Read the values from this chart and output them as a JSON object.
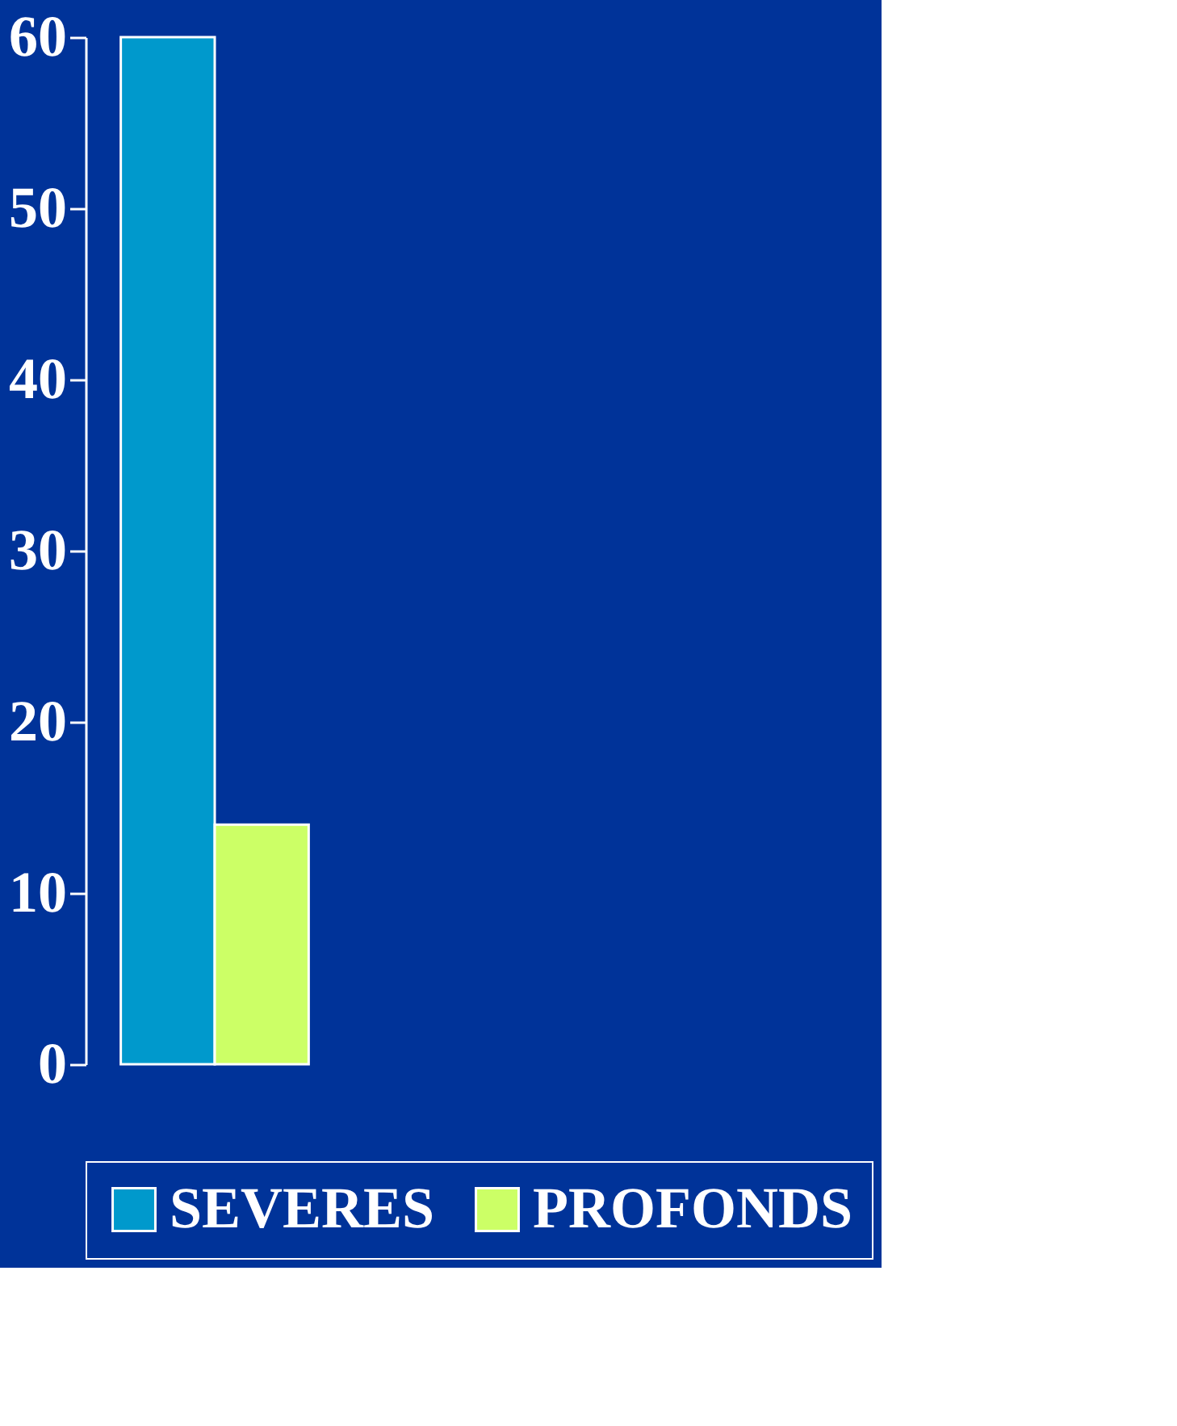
{
  "chart_data": {
    "type": "bar",
    "categories": [
      null
    ],
    "series": [
      {
        "name": "SEVERES",
        "color": "#0099cc",
        "values": [
          60
        ]
      },
      {
        "name": "PROFONDS",
        "color": "#ccff66",
        "values": [
          14
        ]
      }
    ],
    "ylim": [
      0,
      60
    ],
    "yticks": [
      0,
      10,
      20,
      30,
      40,
      50,
      60
    ],
    "grid": false,
    "legend": "bottom",
    "tick_labels": "y"
  }
}
